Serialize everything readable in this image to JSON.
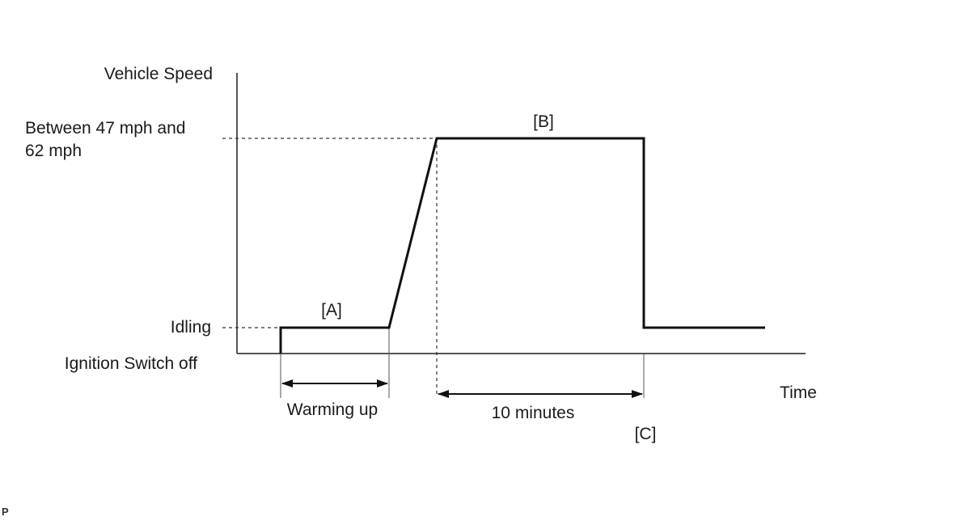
{
  "labels": {
    "y_axis": "Vehicle Speed",
    "x_axis": "Time",
    "speed_line1": "Between 47 mph and",
    "speed_line2": "62 mph",
    "idling": "Idling",
    "ignition_off": "Ignition Switch off",
    "marker_a": "[A]",
    "marker_b": "[B]",
    "marker_c": "[C]",
    "warming_up": "Warming up",
    "ten_minutes": "10 minutes",
    "corner": "P"
  },
  "colors": {
    "line": "#111111",
    "dashed": "#333333",
    "text": "#1a1a1a"
  }
}
